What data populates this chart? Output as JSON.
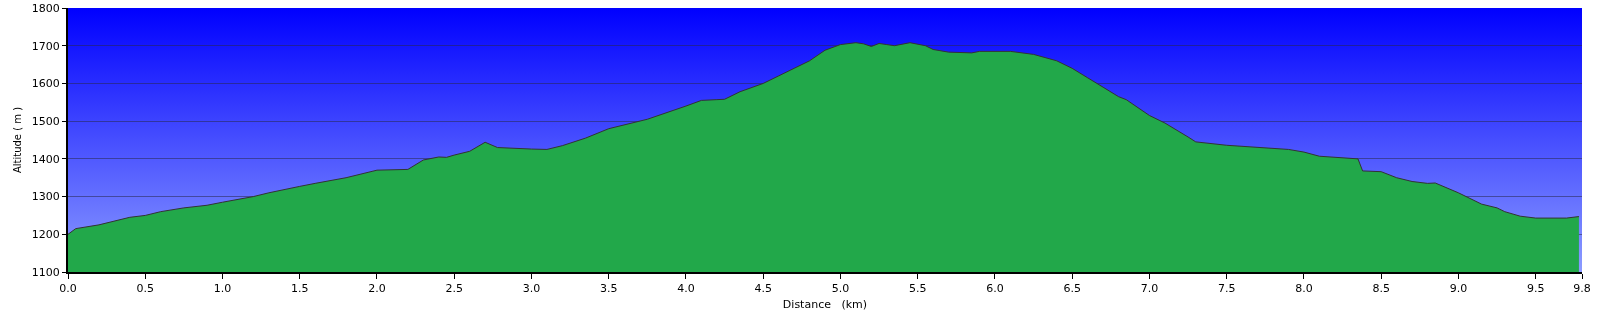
{
  "chart_data": {
    "type": "area",
    "xlabel": "Distance   (km)",
    "ylabel": "Altitude ( m )",
    "x": [
      0,
      0.05,
      0.2,
      0.4,
      0.5,
      0.6,
      0.75,
      0.9,
      1.0,
      1.2,
      1.3,
      1.5,
      1.6,
      1.8,
      2.0,
      2.2,
      2.3,
      2.4,
      2.45,
      2.5,
      2.6,
      2.7,
      2.78,
      3.0,
      3.1,
      3.2,
      3.35,
      3.5,
      3.75,
      4.0,
      4.1,
      4.2,
      4.25,
      4.35,
      4.5,
      4.6,
      4.7,
      4.8,
      4.9,
      5.0,
      5.1,
      5.15,
      5.2,
      5.25,
      5.3,
      5.35,
      5.45,
      5.55,
      5.6,
      5.7,
      5.85,
      5.9,
      6.1,
      6.25,
      6.4,
      6.5,
      6.6,
      6.7,
      6.8,
      6.85,
      7.0,
      7.1,
      7.25,
      7.3,
      7.5,
      7.9,
      8.0,
      8.1,
      8.35,
      8.38,
      8.5,
      8.6,
      8.7,
      8.8,
      8.85,
      9.0,
      9.15,
      9.25,
      9.3,
      9.4,
      9.5,
      9.7,
      9.78
    ],
    "series": [
      {
        "color": "#22a84a",
        "values": [
          1200,
          1215,
          1225,
          1245,
          1250,
          1260,
          1270,
          1277,
          1285,
          1300,
          1310,
          1327,
          1335,
          1350,
          1370,
          1372,
          1397,
          1405,
          1404,
          1410,
          1420,
          1444,
          1430,
          1426,
          1425,
          1435,
          1455,
          1480,
          1505,
          1540,
          1555,
          1557,
          1558,
          1578,
          1600,
          1620,
          1640,
          1660,
          1688,
          1703,
          1708,
          1705,
          1698,
          1706,
          1703,
          1700,
          1708,
          1700,
          1690,
          1683,
          1681,
          1685,
          1685,
          1677,
          1660,
          1640,
          1615,
          1590,
          1565,
          1557,
          1515,
          1495,
          1458,
          1445,
          1436,
          1425,
          1418,
          1407,
          1400,
          1368,
          1366,
          1350,
          1340,
          1335,
          1336,
          1310,
          1280,
          1270,
          1260,
          1248,
          1243,
          1243,
          1247
        ]
      }
    ],
    "xlim": [
      0,
      9.8
    ],
    "xticks": [
      {
        "value": 0,
        "label": "0.0"
      },
      0.5,
      {
        "value": 1,
        "label": "1.0"
      },
      1.5,
      {
        "value": 2,
        "label": "2.0"
      },
      2.5,
      {
        "value": 3,
        "label": "3.0"
      },
      3.5,
      {
        "value": 4,
        "label": "4.0"
      },
      4.5,
      {
        "value": 5,
        "label": "5.0"
      },
      5.5,
      {
        "value": 6,
        "label": "6.0"
      },
      6.5,
      {
        "value": 7,
        "label": "7.0"
      },
      7.5,
      {
        "value": 8,
        "label": "8.0"
      },
      8.5,
      {
        "value": 9,
        "label": "9.0"
      },
      9.5,
      9.8
    ],
    "ylim": [
      1100,
      1800
    ],
    "yticks": [
      1100,
      1200,
      1300,
      1400,
      1500,
      1600,
      1700,
      1800
    ],
    "grid": "y"
  }
}
